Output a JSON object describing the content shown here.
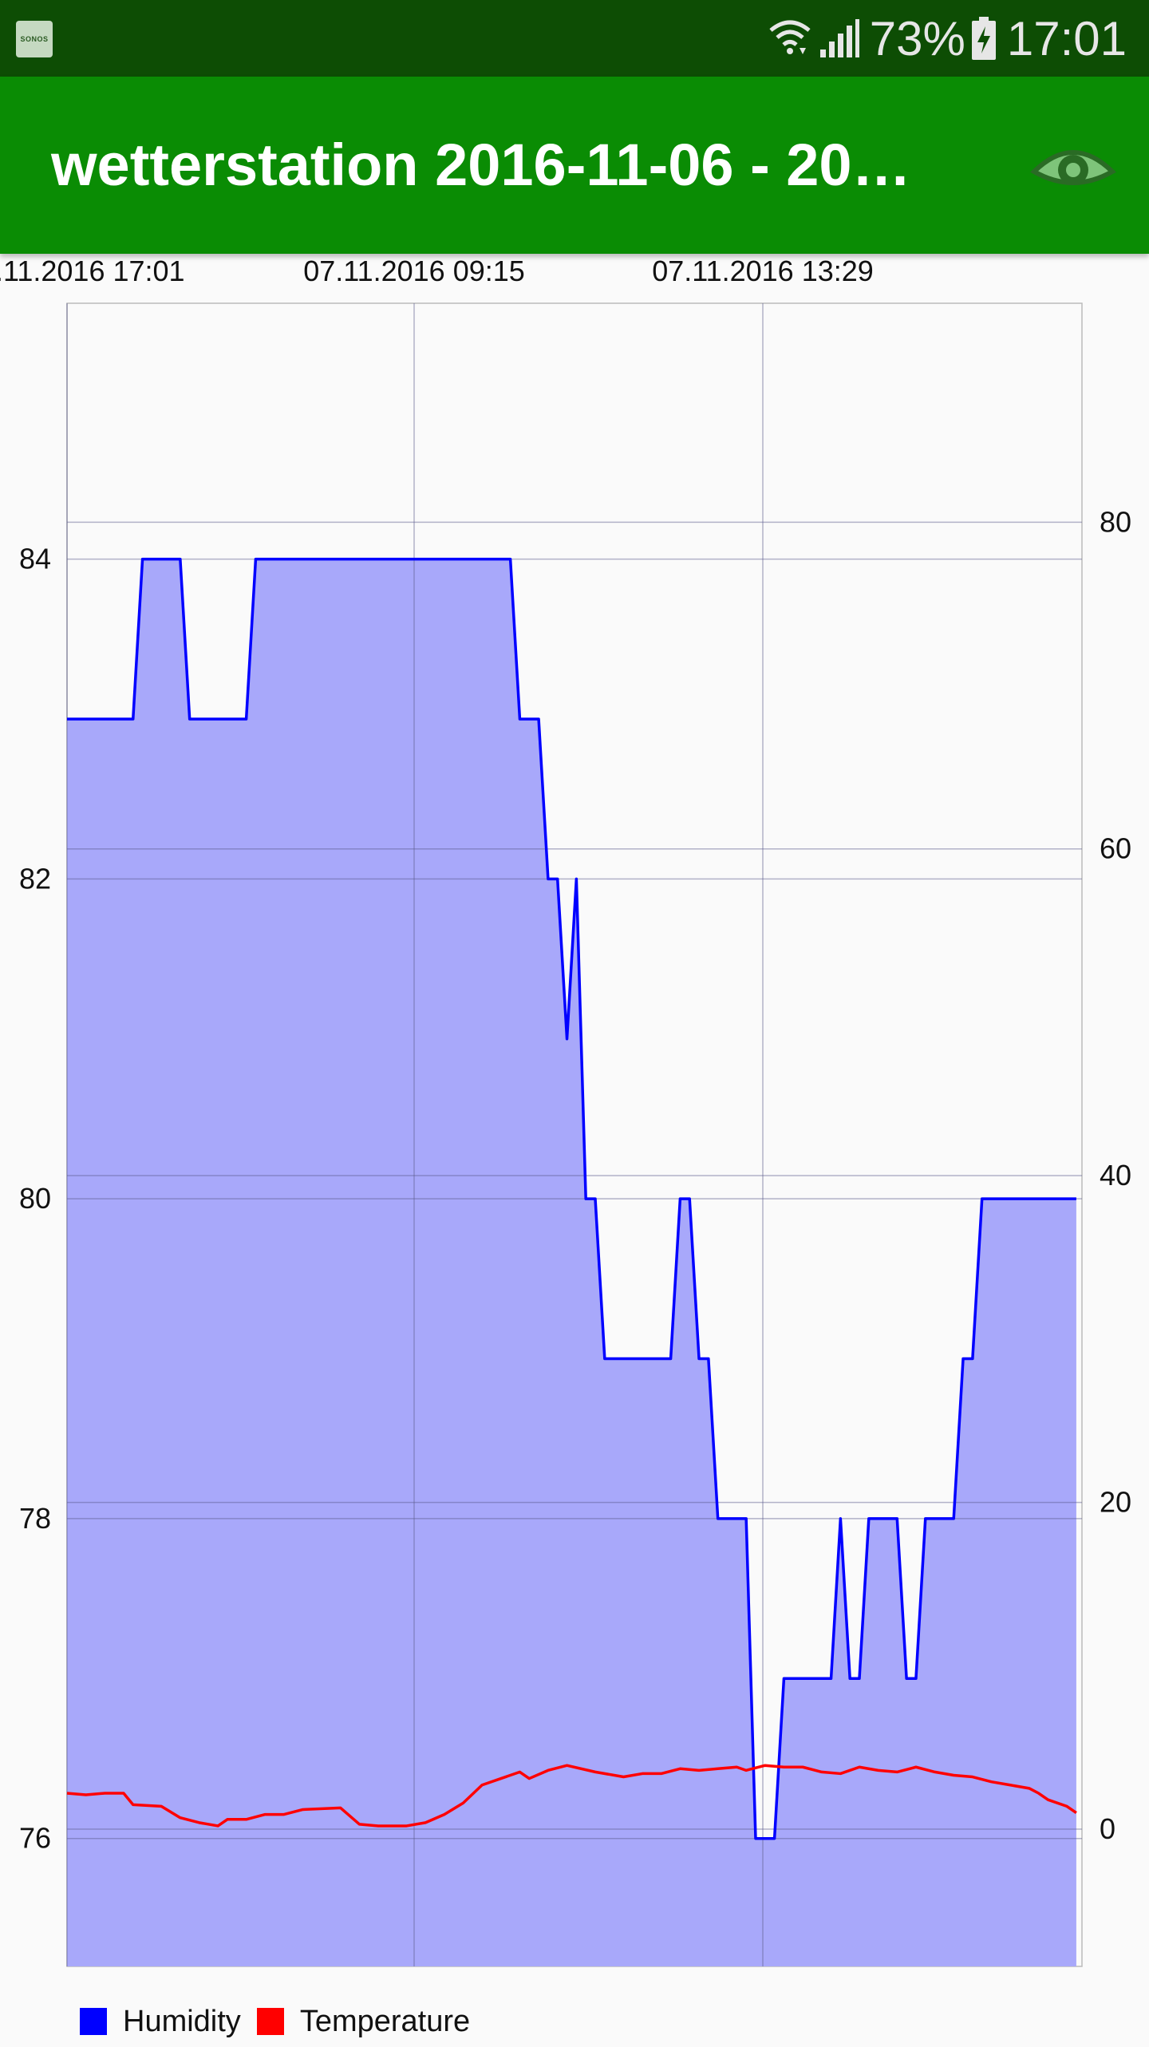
{
  "status_bar": {
    "app_icon_label": "SONOS",
    "battery_percent": "73%",
    "time": "17:01",
    "icons": [
      "wifi-icon",
      "signal-icon",
      "battery-charging-icon"
    ]
  },
  "app_bar": {
    "title": "wetterstation 2016-11-06 - 20…",
    "action_icon": "eye-icon"
  },
  "chart_data": {
    "type": "line",
    "x_tick_labels": [
      ".11.2016 17:01",
      "07.11.2016 09:15",
      "07.11.2016 13:29"
    ],
    "left_axis": {
      "ticks": [
        76,
        78,
        80,
        82,
        84
      ],
      "range": [
        75.2,
        85.6
      ]
    },
    "right_axis": {
      "ticks": [
        0,
        20,
        40,
        60,
        80
      ],
      "range": [
        -8.4,
        93.4
      ]
    },
    "grid": true,
    "legend_position": "bottom-left",
    "series": [
      {
        "name": "Humidity",
        "axis": "left",
        "color": "#0000ff",
        "fill": "#a8a8fa",
        "points": [
          [
            0,
            83
          ],
          [
            7,
            83
          ],
          [
            8,
            84
          ],
          [
            12,
            84
          ],
          [
            13,
            83
          ],
          [
            19,
            83
          ],
          [
            20,
            84
          ],
          [
            47,
            84
          ],
          [
            48,
            83
          ],
          [
            50,
            83
          ],
          [
            51,
            82
          ],
          [
            52,
            82
          ],
          [
            53,
            81
          ],
          [
            54,
            82
          ],
          [
            55,
            80
          ],
          [
            56,
            80
          ],
          [
            57,
            79
          ],
          [
            64,
            79
          ],
          [
            65,
            80
          ],
          [
            66,
            80
          ],
          [
            67,
            79
          ],
          [
            68,
            79
          ],
          [
            69,
            78
          ],
          [
            72,
            78
          ],
          [
            73,
            76
          ],
          [
            75,
            76
          ],
          [
            76,
            77
          ],
          [
            81,
            77
          ],
          [
            82,
            78
          ],
          [
            83,
            77
          ],
          [
            84,
            77
          ],
          [
            85,
            78
          ],
          [
            88,
            78
          ],
          [
            89,
            77
          ],
          [
            90,
            77
          ],
          [
            91,
            78
          ],
          [
            94,
            78
          ],
          [
            95,
            79
          ],
          [
            96,
            79
          ],
          [
            97,
            80
          ],
          [
            107,
            80
          ]
        ]
      },
      {
        "name": "Temperature",
        "axis": "right",
        "color": "#ff0000",
        "points": [
          [
            0,
            2.2
          ],
          [
            2,
            2.1
          ],
          [
            4,
            2.2
          ],
          [
            6,
            2.2
          ],
          [
            7,
            1.5
          ],
          [
            10,
            1.4
          ],
          [
            12,
            0.7
          ],
          [
            14,
            0.4
          ],
          [
            16,
            0.2
          ],
          [
            17,
            0.6
          ],
          [
            19,
            0.6
          ],
          [
            21,
            0.9
          ],
          [
            23,
            0.9
          ],
          [
            25,
            1.2
          ],
          [
            29,
            1.3
          ],
          [
            31,
            0.3
          ],
          [
            33,
            0.2
          ],
          [
            36,
            0.2
          ],
          [
            38,
            0.4
          ],
          [
            40,
            0.9
          ],
          [
            42,
            1.6
          ],
          [
            44,
            2.7
          ],
          [
            46,
            3.1
          ],
          [
            48,
            3.5
          ],
          [
            49,
            3.1
          ],
          [
            51,
            3.6
          ],
          [
            53,
            3.9
          ],
          [
            56,
            3.5
          ],
          [
            59,
            3.2
          ],
          [
            61,
            3.4
          ],
          [
            63,
            3.4
          ],
          [
            65,
            3.7
          ],
          [
            67,
            3.6
          ],
          [
            69,
            3.7
          ],
          [
            71,
            3.8
          ],
          [
            72,
            3.6
          ],
          [
            74,
            3.9
          ],
          [
            76,
            3.8
          ],
          [
            78,
            3.8
          ],
          [
            80,
            3.5
          ],
          [
            82,
            3.4
          ],
          [
            84,
            3.8
          ],
          [
            86,
            3.6
          ],
          [
            88,
            3.5
          ],
          [
            90,
            3.8
          ],
          [
            92,
            3.5
          ],
          [
            94,
            3.3
          ],
          [
            96,
            3.2
          ],
          [
            98,
            2.9
          ],
          [
            100,
            2.7
          ],
          [
            102,
            2.5
          ],
          [
            103,
            2.2
          ],
          [
            104,
            1.8
          ],
          [
            106,
            1.4
          ],
          [
            107,
            1.0
          ]
        ]
      }
    ]
  }
}
